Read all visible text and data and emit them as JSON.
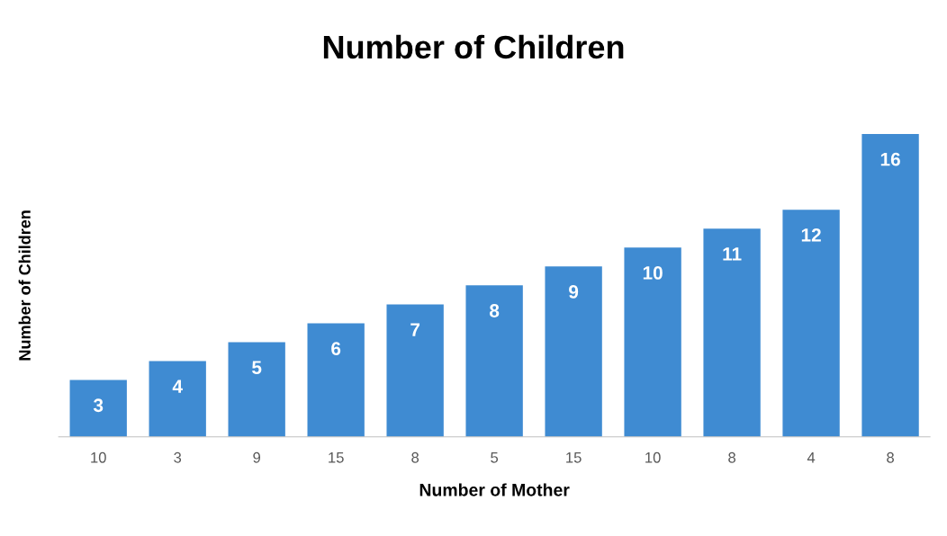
{
  "chart_data": {
    "type": "bar",
    "title": "Number of Children",
    "xlabel": "Number of Mother",
    "ylabel": "Number of Children",
    "categories": [
      "10",
      "3",
      "9",
      "15",
      "8",
      "5",
      "15",
      "10",
      "8",
      "4",
      "8"
    ],
    "values": [
      3,
      4,
      5,
      6,
      7,
      8,
      9,
      10,
      11,
      12,
      16
    ],
    "color": "#3f8bd2",
    "data_labels": true,
    "grid": false,
    "legend": false
  }
}
